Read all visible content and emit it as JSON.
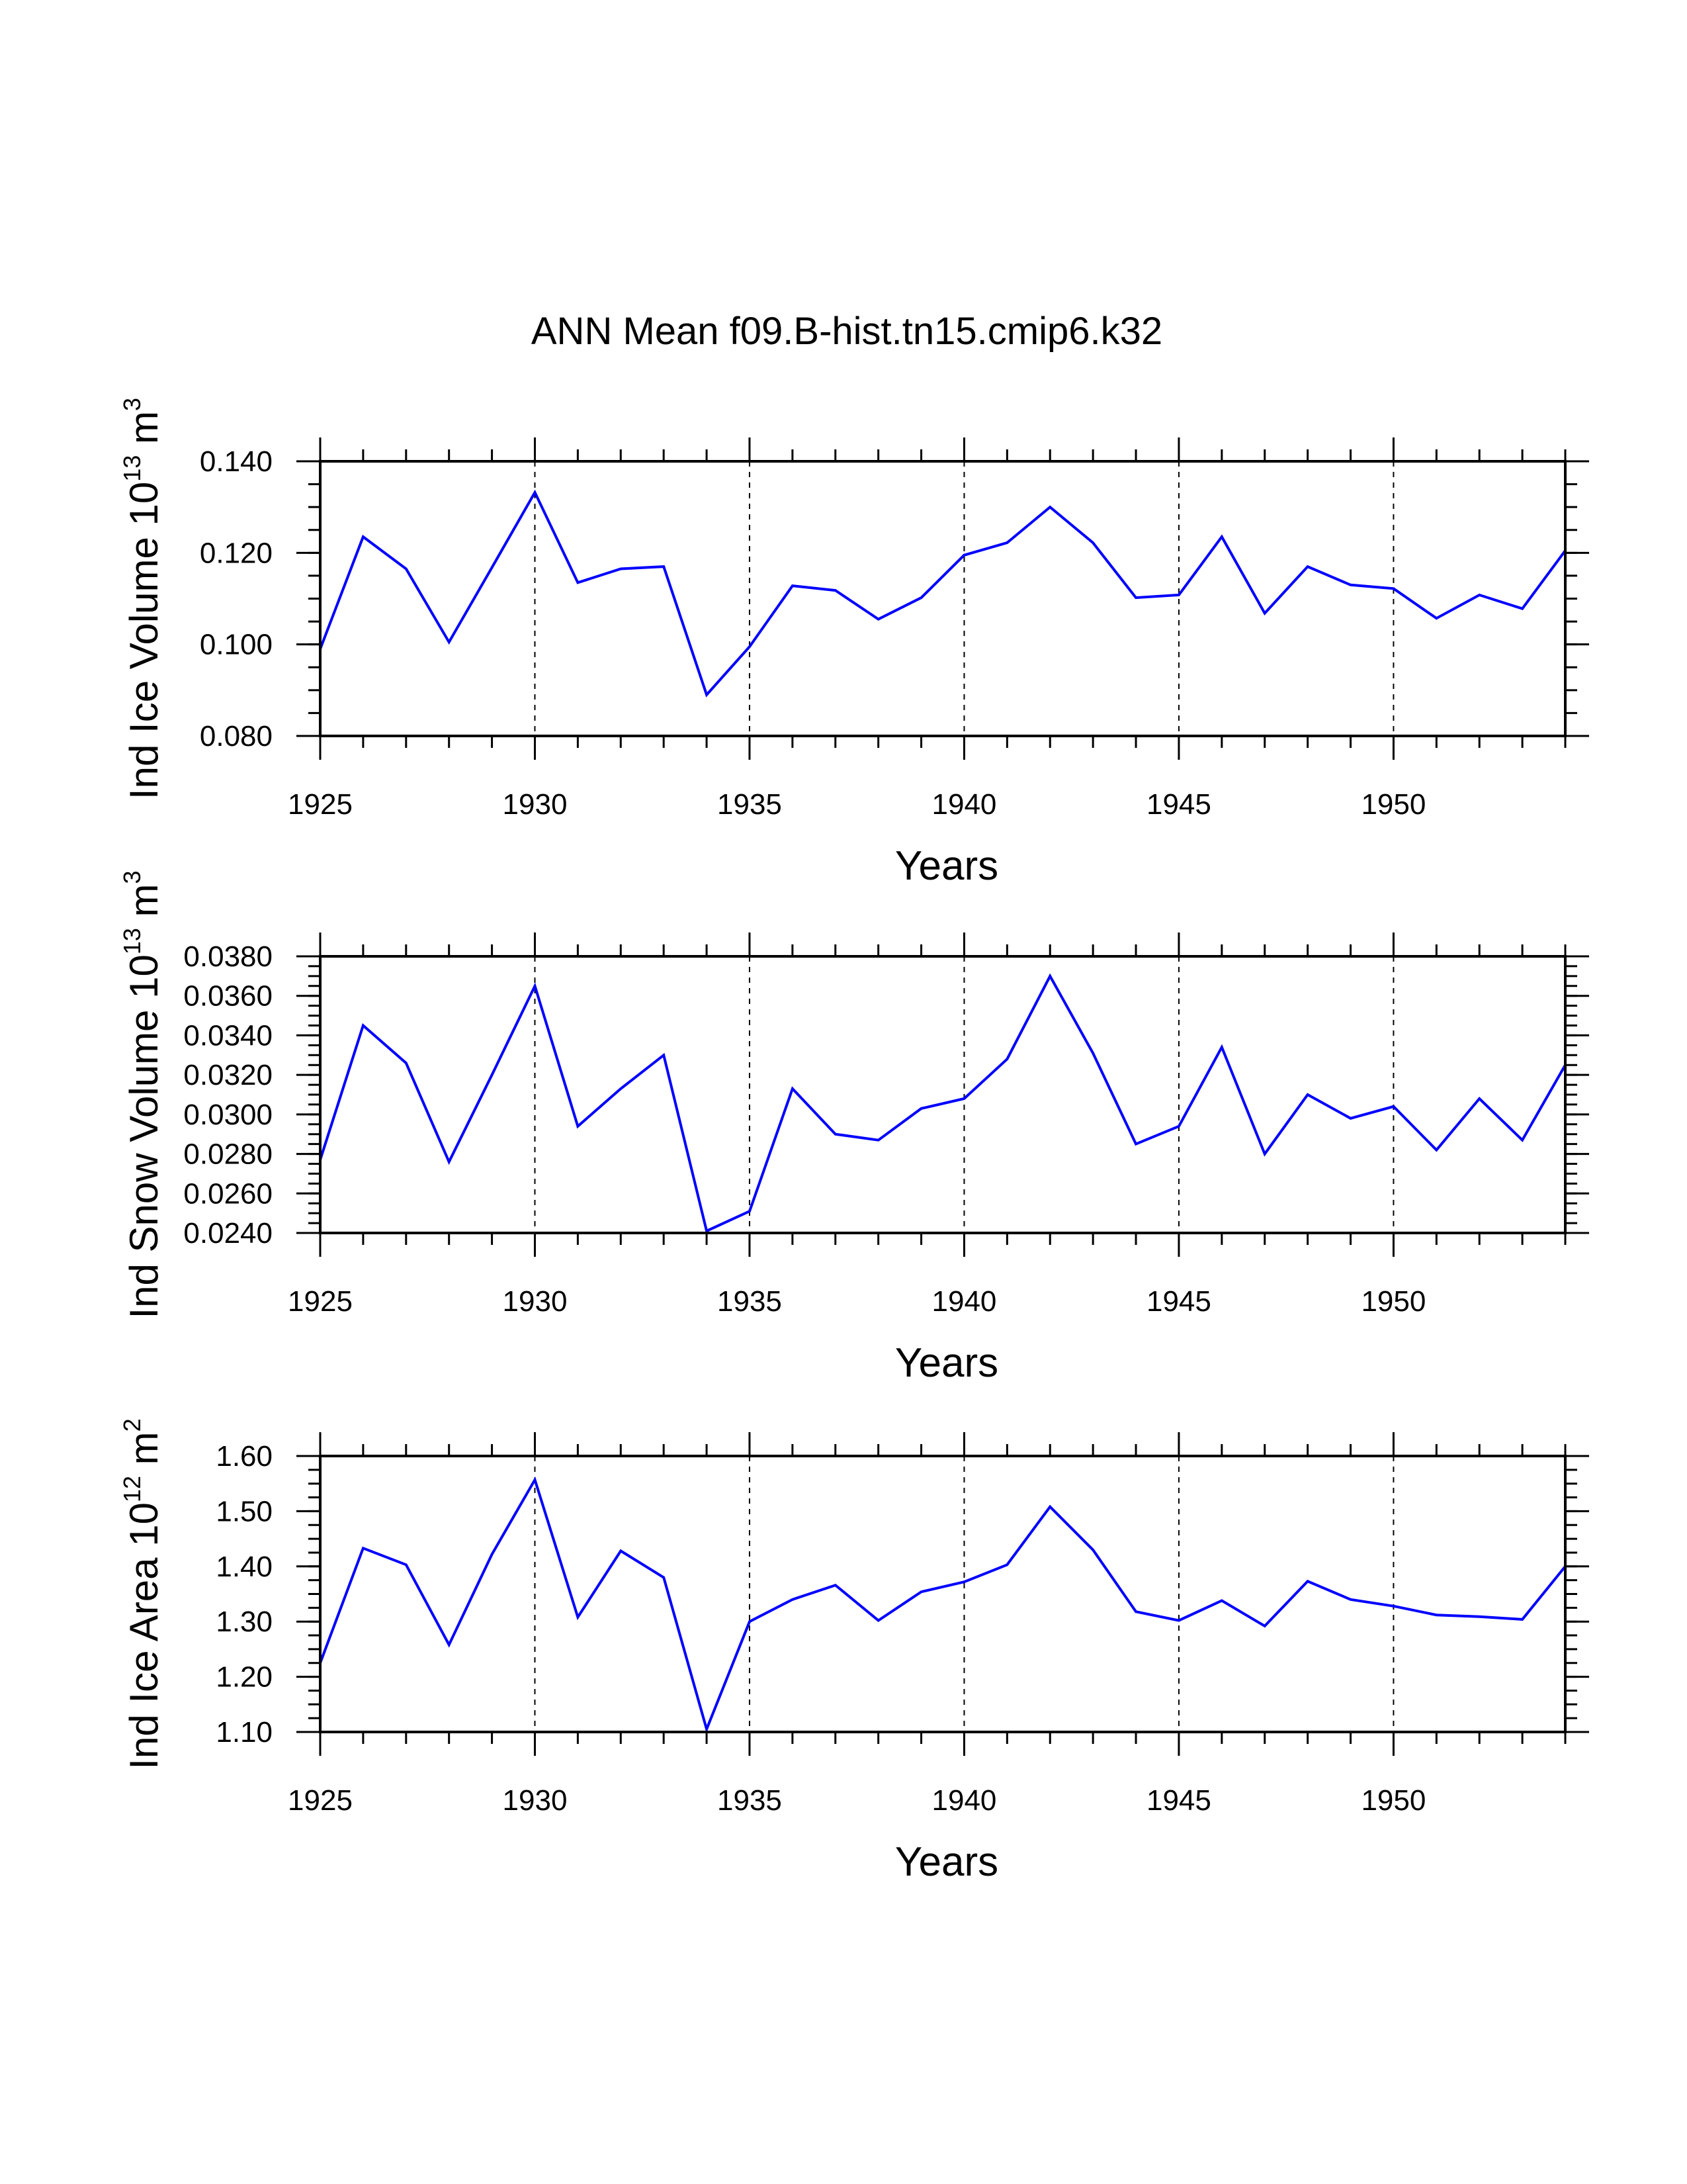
{
  "chart_data": {
    "title": "ANN Mean f09.B-hist.tn15.cmip6.k32",
    "x": [
      1925,
      1926,
      1927,
      1928,
      1929,
      1930,
      1931,
      1932,
      1933,
      1934,
      1935,
      1936,
      1937,
      1938,
      1939,
      1940,
      1941,
      1942,
      1943,
      1944,
      1945,
      1946,
      1947,
      1948,
      1949,
      1950,
      1951,
      1952,
      1953,
      1954
    ],
    "panels": [
      {
        "type": "line",
        "ylabel": {
          "main": "Ind Ice Volume 10",
          "exp": "13",
          "unit": " m",
          "unit_exp": "3"
        },
        "xlabel": "Years",
        "xlim": [
          1925,
          1954
        ],
        "ylim": [
          0.08,
          0.14
        ],
        "yticks": [
          0.08,
          0.1,
          0.12,
          0.14
        ],
        "yticklabels": [
          "0.080",
          "0.100",
          "0.120",
          "0.140"
        ],
        "yminor_step": 0.005,
        "series": [
          {
            "name": "Ind Ice Volume",
            "color": "#0000ff",
            "values": [
              0.099,
              0.1235,
              0.1165,
              0.1005,
              0.1168,
              0.1332,
              0.1135,
              0.1165,
              0.117,
              0.089,
              0.0995,
              0.1128,
              0.1118,
              0.1055,
              0.1102,
              0.1195,
              0.1222,
              0.13,
              0.1222,
              0.1102,
              0.1108,
              0.1235,
              0.1068,
              0.117,
              0.113,
              0.1122,
              0.1057,
              0.1108,
              0.1078,
              0.1205
            ]
          }
        ]
      },
      {
        "type": "line",
        "ylabel": {
          "main": "Ind Snow Volume 10",
          "exp": "13",
          "unit": " m",
          "unit_exp": "3"
        },
        "xlabel": "Years",
        "xlim": [
          1925,
          1954
        ],
        "ylim": [
          0.024,
          0.038
        ],
        "yticks": [
          0.024,
          0.026,
          0.028,
          0.03,
          0.032,
          0.034,
          0.036,
          0.038
        ],
        "yticklabels": [
          "0.0240",
          "0.0260",
          "0.0280",
          "0.0300",
          "0.0320",
          "0.0340",
          "0.0360",
          "0.0380"
        ],
        "yminor_step": 0.0005,
        "series": [
          {
            "name": "Ind Snow Volume",
            "color": "#0000ff",
            "values": [
              0.0277,
              0.0345,
              0.0326,
              0.0276,
              0.032,
              0.0365,
              0.0294,
              0.0313,
              0.033,
              0.0241,
              0.0251,
              0.0313,
              0.029,
              0.0287,
              0.0303,
              0.0308,
              0.0328,
              0.037,
              0.0331,
              0.0285,
              0.0294,
              0.0334,
              0.028,
              0.031,
              0.0298,
              0.0304,
              0.0282,
              0.0308,
              0.0287,
              0.0325
            ]
          }
        ]
      },
      {
        "type": "line",
        "ylabel": {
          "main": "Ind Ice Area 10",
          "exp": "12",
          "unit": " m",
          "unit_exp": "2"
        },
        "xlabel": "Years",
        "xlim": [
          1925,
          1954
        ],
        "ylim": [
          1.1,
          1.6
        ],
        "yticks": [
          1.1,
          1.2,
          1.3,
          1.4,
          1.5,
          1.6
        ],
        "yticklabels": [
          "1.10",
          "1.20",
          "1.30",
          "1.40",
          "1.50",
          "1.60"
        ],
        "yminor_step": 0.025,
        "series": [
          {
            "name": "Ind Ice Area",
            "color": "#0000ff",
            "values": [
              1.225,
              1.433,
              1.403,
              1.258,
              1.422,
              1.557,
              1.308,
              1.428,
              1.38,
              1.105,
              1.3,
              1.34,
              1.366,
              1.302,
              1.354,
              1.372,
              1.403,
              1.508,
              1.43,
              1.318,
              1.302,
              1.338,
              1.292,
              1.373,
              1.34,
              1.328,
              1.312,
              1.309,
              1.304,
              1.4
            ]
          }
        ]
      }
    ],
    "xticks": [
      1925,
      1930,
      1935,
      1940,
      1945,
      1950
    ],
    "xticklabels": [
      "1925",
      "1930",
      "1935",
      "1940",
      "1945",
      "1950"
    ],
    "grid": "dashed vertical lines at labelled x ticks"
  }
}
